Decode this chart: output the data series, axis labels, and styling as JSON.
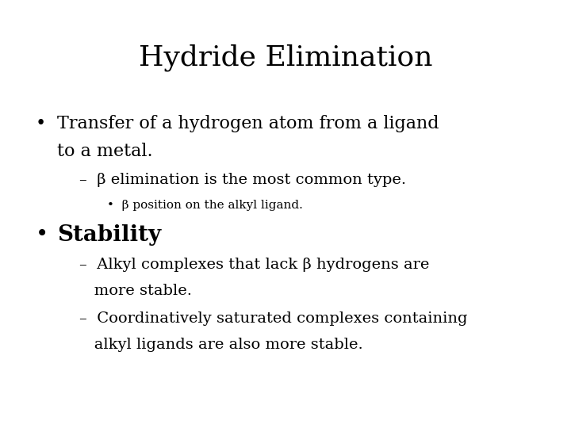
{
  "title": "Hydride Elimination",
  "background_color": "#ffffff",
  "text_color": "#000000",
  "title_fontsize": 26,
  "body_fontsize": 16,
  "sub_fontsize": 14,
  "subsub_fontsize": 11,
  "stability_fontsize": 20,
  "bullet1_line1": "Transfer of a hydrogen atom from a ligand",
  "bullet1_line2": "to a metal.",
  "sub1_text": "–  β elimination is the most common type.",
  "subsub1_text": "•  β position on the alkyl ligand.",
  "bullet2_text": "Stability",
  "sub2a_line1": "–  Alkyl complexes that lack β hydrogens are",
  "sub2a_line2": "   more stable.",
  "sub2b_line1": "–  Coordinatively saturated complexes containing",
  "sub2b_line2": "   alkyl ligands are also more stable."
}
